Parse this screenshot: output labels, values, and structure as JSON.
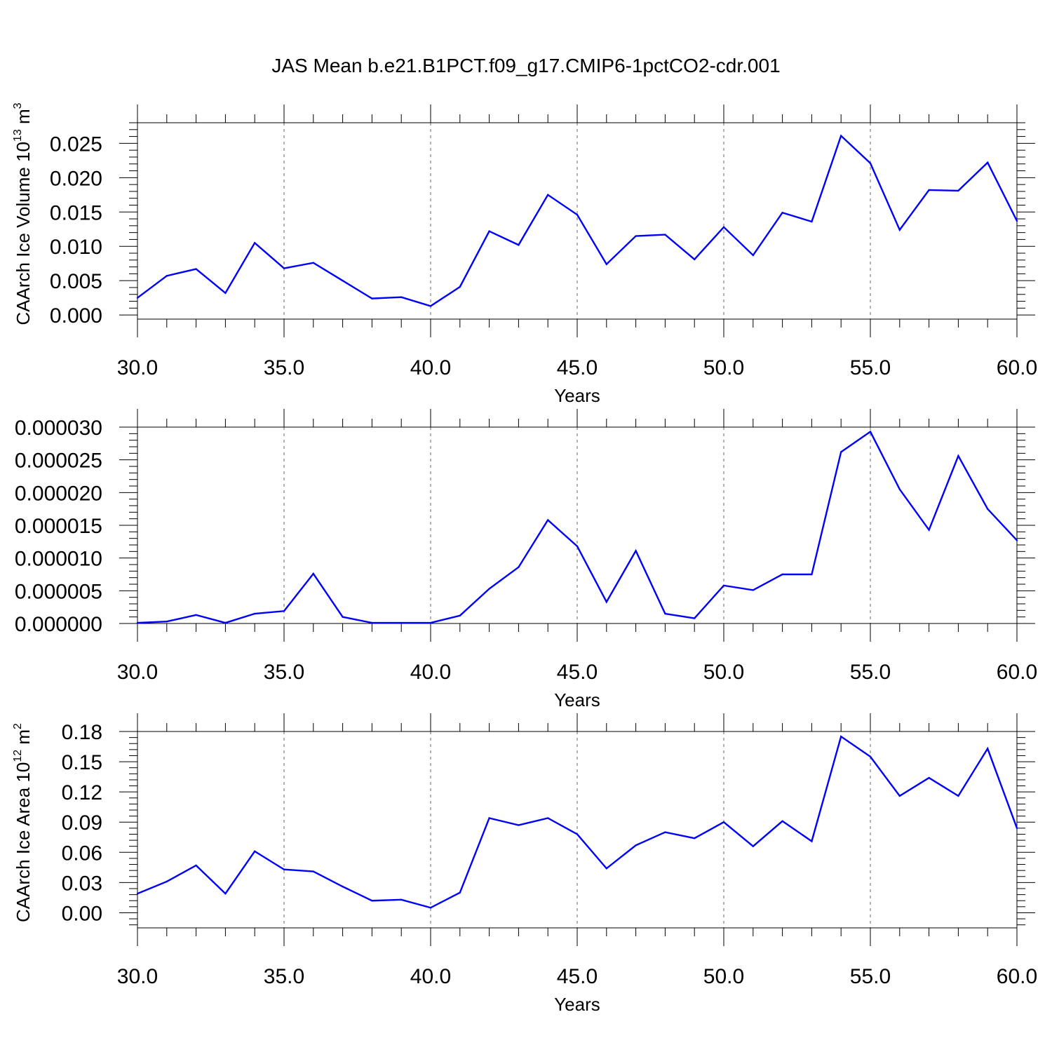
{
  "title": "JAS Mean b.e21.B1PCT.f09_g17.CMIP6-1pctCO2-cdr.001",
  "line_color": "#0000ff",
  "chart_data": [
    {
      "type": "line",
      "ylabel": "CAArch Ice Volume 10",
      "ylabel_sup": "13",
      "ylabel_unit": "m",
      "ylabel_unit_sup": "3",
      "xlabel": "Years",
      "xlim": [
        30,
        60
      ],
      "ylim": [
        -0.0006,
        0.028
      ],
      "xticks": [
        "30.0",
        "35.0",
        "40.0",
        "45.0",
        "50.0",
        "55.0",
        "60.0"
      ],
      "yticks": [
        "0.000",
        "0.005",
        "0.010",
        "0.015",
        "0.020",
        "0.025"
      ],
      "grid": "x-dashed",
      "x": [
        30,
        31,
        32,
        33,
        34,
        35,
        36,
        37,
        38,
        39,
        40,
        41,
        42,
        43,
        44,
        45,
        46,
        47,
        48,
        49,
        50,
        51,
        52,
        53,
        54,
        55,
        56,
        57,
        58,
        59,
        60
      ],
      "y": [
        0.0025,
        0.0057,
        0.0067,
        0.0032,
        0.0105,
        0.0068,
        0.0076,
        0.005,
        0.0024,
        0.0026,
        0.0013,
        0.0041,
        0.0122,
        0.0102,
        0.0175,
        0.0146,
        0.0074,
        0.0115,
        0.0117,
        0.0081,
        0.0128,
        0.0087,
        0.0149,
        0.0136,
        0.0261,
        0.0221,
        0.0124,
        0.0182,
        0.0181,
        0.0222,
        0.0137
      ]
    },
    {
      "type": "line",
      "ylabel": "",
      "xlabel": "Years",
      "xlim": [
        30,
        60
      ],
      "ylim": [
        0,
        3e-05
      ],
      "xticks": [
        "30.0",
        "35.0",
        "40.0",
        "45.0",
        "50.0",
        "55.0",
        "60.0"
      ],
      "yticks": [
        "0.000000",
        "0.000005",
        "0.000010",
        "0.000015",
        "0.000020",
        "0.000025",
        "0.000030"
      ],
      "grid": "x-dashed",
      "x": [
        30,
        31,
        32,
        33,
        34,
        35,
        36,
        37,
        38,
        39,
        40,
        41,
        42,
        43,
        44,
        45,
        46,
        47,
        48,
        49,
        50,
        51,
        52,
        53,
        54,
        55,
        56,
        57,
        58,
        59,
        60
      ],
      "y": [
        1e-07,
        3e-07,
        1.3e-06,
        1e-07,
        1.5e-06,
        1.9e-06,
        7.6e-06,
        1e-06,
        1e-07,
        1e-07,
        1e-07,
        1.2e-06,
        5.3e-06,
        8.6e-06,
        1.58e-05,
        1.18e-05,
        3.3e-06,
        1.11e-05,
        1.5e-06,
        8e-07,
        5.8e-06,
        5.1e-06,
        7.5e-06,
        7.5e-06,
        2.62e-05,
        2.93e-05,
        2.05e-05,
        1.43e-05,
        2.56e-05,
        1.75e-05,
        1.27e-05
      ]
    },
    {
      "type": "line",
      "ylabel": "CAArch Ice Area 10",
      "ylabel_sup": "12",
      "ylabel_unit": "m",
      "ylabel_unit_sup": "2",
      "xlabel": "Years",
      "xlim": [
        30,
        60
      ],
      "ylim": [
        -0.015,
        0.18
      ],
      "xticks": [
        "30.0",
        "35.0",
        "40.0",
        "45.0",
        "50.0",
        "55.0",
        "60.0"
      ],
      "yticks": [
        "0.00",
        "0.03",
        "0.06",
        "0.09",
        "0.12",
        "0.15",
        "0.18"
      ],
      "grid": "x-dashed",
      "x": [
        30,
        31,
        32,
        33,
        34,
        35,
        36,
        37,
        38,
        39,
        40,
        41,
        42,
        43,
        44,
        45,
        46,
        47,
        48,
        49,
        50,
        51,
        52,
        53,
        54,
        55,
        56,
        57,
        58,
        59,
        60
      ],
      "y": [
        0.019,
        0.031,
        0.047,
        0.019,
        0.061,
        0.043,
        0.041,
        0.026,
        0.012,
        0.013,
        0.005,
        0.02,
        0.094,
        0.087,
        0.094,
        0.078,
        0.044,
        0.067,
        0.08,
        0.074,
        0.09,
        0.066,
        0.091,
        0.071,
        0.175,
        0.155,
        0.116,
        0.134,
        0.116,
        0.163,
        0.084
      ]
    }
  ]
}
